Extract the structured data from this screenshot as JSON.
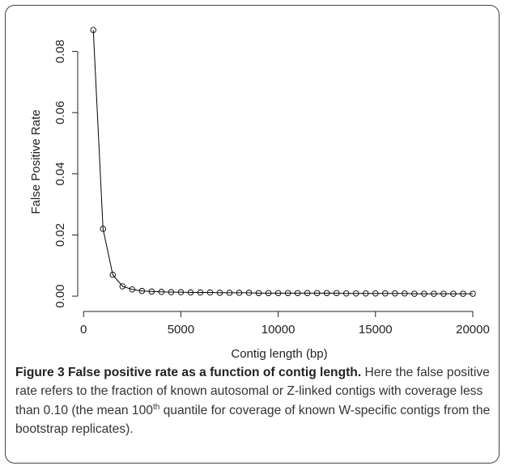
{
  "chart_data": {
    "type": "line",
    "xlabel": "Contig length (bp)",
    "ylabel": "False Positive Rate",
    "x": [
      500,
      1000,
      1500,
      2000,
      2500,
      3000,
      3500,
      4000,
      4500,
      5000,
      5500,
      6000,
      6500,
      7000,
      7500,
      8000,
      8500,
      9000,
      9500,
      10000,
      10500,
      11000,
      11500,
      12000,
      12500,
      13000,
      13500,
      14000,
      14500,
      15000,
      15500,
      16000,
      16500,
      17000,
      17500,
      18000,
      18500,
      19000,
      19500,
      20000
    ],
    "series": [
      {
        "color": "#000000",
        "values": [
          0.087,
          0.022,
          0.007,
          0.0032,
          0.0022,
          0.0017,
          0.0015,
          0.0014,
          0.0013,
          0.0013,
          0.0012,
          0.0012,
          0.0012,
          0.0011,
          0.0011,
          0.0011,
          0.0011,
          0.001,
          0.001,
          0.001,
          0.001,
          0.001,
          0.001,
          0.001,
          0.001,
          0.001,
          0.0009,
          0.0009,
          0.0009,
          0.0009,
          0.0009,
          0.0009,
          0.0009,
          0.0008,
          0.0008,
          0.0008,
          0.0008,
          0.0008,
          0.0008,
          0.0008
        ]
      }
    ],
    "xlim": [
      -300,
      20500
    ],
    "ylim": [
      -0.005,
      0.091
    ],
    "xticks": [
      0,
      5000,
      10000,
      15000,
      20000
    ],
    "yticks": [
      {
        "value": 0,
        "label": "0.00"
      },
      {
        "value": 0.02,
        "label": "0.02"
      },
      {
        "value": 0.04,
        "label": "0.04"
      },
      {
        "value": 0.06,
        "label": "0.06"
      },
      {
        "value": 0.08,
        "label": "0.08"
      }
    ]
  },
  "caption": {
    "title": "Figure 3 False positive rate as a function of contig length.",
    "body_1": "Here the false positive rate refers to the fraction of known autosomal or Z-linked contigs with coverage less than 0.10 (the mean 100",
    "body_sup": "th",
    "body_2": "quantile for coverage of known W-specific contigs from the bootstrap replicates)."
  }
}
